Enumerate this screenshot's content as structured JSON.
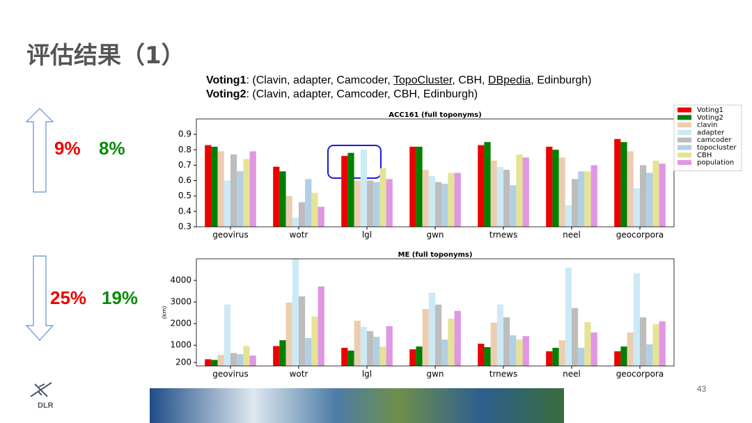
{
  "slide": {
    "title": "评估结果（1）",
    "page_number": "43",
    "logo_text": "DLR",
    "voting": [
      {
        "label": "Voting1",
        "parts": [
          {
            "text": ": (Clavin, adapter,  Camcoder, "
          },
          {
            "text": "TopoCluster",
            "underline": true
          },
          {
            "text": ", CBH, "
          },
          {
            "text": "DBpedia",
            "underline": true
          },
          {
            "text": ", Edinburgh)"
          }
        ]
      },
      {
        "label": "Voting2",
        "parts": [
          {
            "text": ": (Clavin, adapter,  Camcoder, CBH, Edinburgh)"
          }
        ]
      }
    ],
    "improvements": [
      {
        "direction": "up",
        "voting1": "9%",
        "voting2": "8%"
      },
      {
        "direction": "down",
        "voting1": "25%",
        "voting2": "19%"
      }
    ]
  },
  "chart_data": [
    {
      "type": "bar",
      "title": "ACC161 (full toponyms)",
      "categories": [
        "geovirus",
        "wotr",
        "lgl",
        "gwn",
        "trnews",
        "neel",
        "geocorpora"
      ],
      "ylim": [
        0.3,
        1.0
      ],
      "yticks": [
        0.3,
        0.4,
        0.5,
        0.6,
        0.7,
        0.8,
        0.9
      ],
      "legend": "outside right",
      "series": [
        {
          "name": "Voting1",
          "color": "#ee0000",
          "values": [
            0.83,
            0.69,
            0.76,
            0.82,
            0.83,
            0.82,
            0.87
          ]
        },
        {
          "name": "Voting2",
          "color": "#008000",
          "values": [
            0.82,
            0.66,
            0.78,
            0.82,
            0.85,
            0.8,
            0.85
          ]
        },
        {
          "name": "clavin",
          "color": "#edcdb0",
          "values": [
            0.79,
            0.5,
            0.6,
            0.67,
            0.73,
            0.75,
            0.79
          ]
        },
        {
          "name": "adapter",
          "color": "#cce9f6",
          "values": [
            0.6,
            0.36,
            0.8,
            0.63,
            0.69,
            0.44,
            0.55
          ]
        },
        {
          "name": "camcoder",
          "color": "#bdbdbd",
          "values": [
            0.77,
            0.46,
            0.6,
            0.59,
            0.67,
            0.61,
            0.7
          ]
        },
        {
          "name": "topocluster",
          "color": "#b2cfe4",
          "values": [
            0.66,
            0.61,
            0.59,
            0.58,
            0.57,
            0.66,
            0.65
          ]
        },
        {
          "name": "CBH",
          "color": "#e5e495",
          "values": [
            0.74,
            0.52,
            0.68,
            0.65,
            0.77,
            0.66,
            0.73
          ]
        },
        {
          "name": "population",
          "color": "#e196e3",
          "values": [
            0.79,
            0.43,
            0.61,
            0.65,
            0.75,
            0.7,
            0.71
          ]
        }
      ]
    },
    {
      "type": "bar",
      "title": "ME (full toponyms)",
      "ylabel": "(km)",
      "categories": [
        "geovirus",
        "wotr",
        "lgl",
        "gwn",
        "trnews",
        "neel",
        "geocorpora"
      ],
      "ylim": [
        40,
        5000
      ],
      "yticks": [
        200,
        1000,
        2000,
        3000,
        4000
      ],
      "series": [
        {
          "color": "#ee0000",
          "values": [
            350,
            960,
            880,
            810,
            1070,
            720,
            720
          ]
        },
        {
          "color": "#008000",
          "values": [
            320,
            1230,
            750,
            940,
            910,
            880,
            940
          ]
        },
        {
          "color": "#edcdb0",
          "values": [
            560,
            2970,
            2130,
            2680,
            2040,
            1230,
            1590
          ]
        },
        {
          "color": "#cce9f6",
          "values": [
            2880,
            5000,
            1850,
            3430,
            2880,
            4590,
            4330
          ]
        },
        {
          "color": "#bdbdbd",
          "values": [
            640,
            3260,
            1650,
            2880,
            2290,
            2720,
            2290
          ]
        },
        {
          "color": "#b2cfe4",
          "values": [
            580,
            1330,
            1390,
            1260,
            1460,
            880,
            1040
          ]
        },
        {
          "color": "#e5e495",
          "values": [
            960,
            2330,
            940,
            2230,
            1270,
            2070,
            1970
          ]
        },
        {
          "color": "#e196e3",
          "values": [
            520,
            3720,
            1880,
            2590,
            1420,
            1590,
            2100
          ]
        }
      ]
    }
  ]
}
